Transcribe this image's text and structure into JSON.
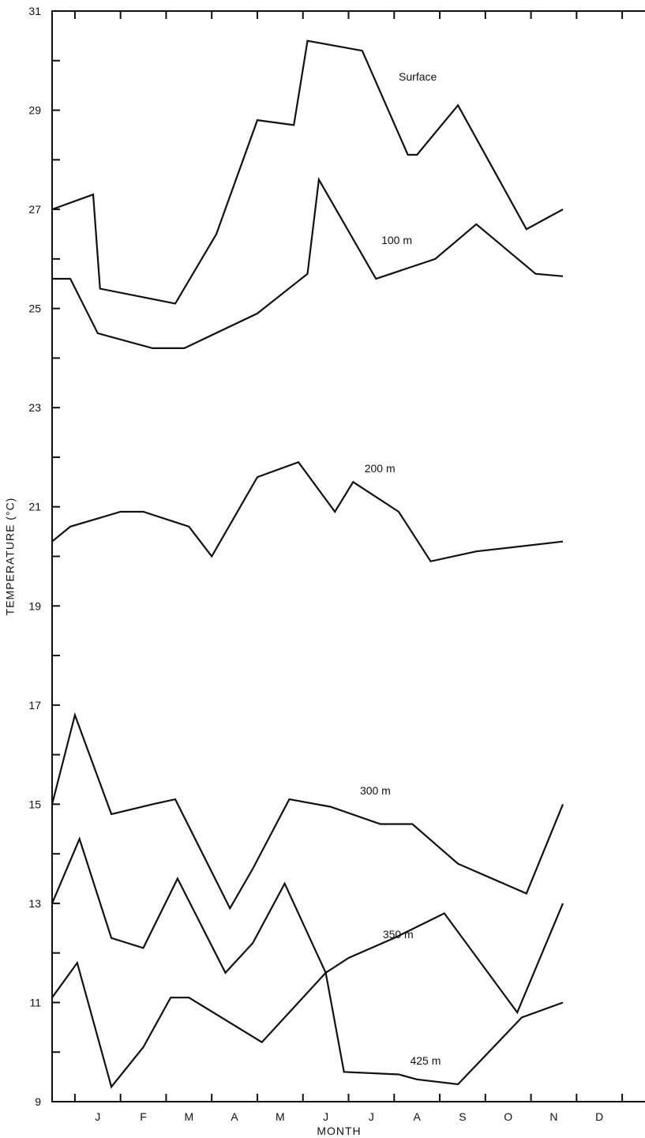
{
  "chart_data": {
    "type": "line",
    "title": "",
    "xlabel": "MONTH",
    "ylabel": "TEMPERATURE (°C)",
    "ylim": [
      9,
      31
    ],
    "xlim": [
      0,
      13
    ],
    "y_ticks_labeled": [
      9,
      11,
      13,
      15,
      17,
      19,
      21,
      23,
      25,
      27,
      29,
      31
    ],
    "y_ticks_minor": [
      10,
      12,
      14,
      16,
      18,
      20,
      22,
      24,
      26,
      28,
      30
    ],
    "x_ticks": [
      0.5,
      1.5,
      2.5,
      3.5,
      4.5,
      5.5,
      6.5,
      7.5,
      8.5,
      9.5,
      10.5,
      11.5,
      12.5
    ],
    "x_tick_labels": [
      {
        "x": 1,
        "label": "J"
      },
      {
        "x": 2,
        "label": "F"
      },
      {
        "x": 3,
        "label": "M"
      },
      {
        "x": 4,
        "label": "A"
      },
      {
        "x": 5,
        "label": "M"
      },
      {
        "x": 6,
        "label": "J"
      },
      {
        "x": 7,
        "label": "J"
      },
      {
        "x": 8,
        "label": "A"
      },
      {
        "x": 9,
        "label": "S"
      },
      {
        "x": 10,
        "label": "O"
      },
      {
        "x": 11,
        "label": "N"
      },
      {
        "x": 12,
        "label": "D"
      }
    ],
    "grid": false,
    "series": [
      {
        "name": "Surface",
        "label_at": {
          "x": 7.6,
          "y": 29.6
        },
        "points": [
          [
            0,
            27.0
          ],
          [
            0.9,
            27.3
          ],
          [
            1.05,
            25.4
          ],
          [
            2.7,
            25.1
          ],
          [
            3.6,
            26.5
          ],
          [
            4.5,
            28.8
          ],
          [
            5.3,
            28.7
          ],
          [
            5.6,
            30.4
          ],
          [
            6.8,
            30.2
          ],
          [
            7.8,
            28.1
          ],
          [
            8.0,
            28.1
          ],
          [
            8.9,
            29.1
          ],
          [
            10.4,
            26.6
          ],
          [
            11.2,
            27.0
          ]
        ]
      },
      {
        "name": "100 m",
        "label_at": {
          "x": 7.22,
          "y": 26.3
        },
        "points": [
          [
            0,
            25.6
          ],
          [
            0.4,
            25.6
          ],
          [
            1.0,
            24.5
          ],
          [
            2.2,
            24.2
          ],
          [
            2.9,
            24.2
          ],
          [
            4.5,
            24.9
          ],
          [
            5.6,
            25.7
          ],
          [
            5.85,
            27.6
          ],
          [
            7.1,
            25.6
          ],
          [
            8.4,
            26.0
          ],
          [
            9.3,
            26.7
          ],
          [
            10.6,
            25.7
          ],
          [
            11.2,
            25.65
          ]
        ]
      },
      {
        "name": "200 m",
        "label_at": {
          "x": 6.85,
          "y": 21.7
        },
        "points": [
          [
            0,
            20.3
          ],
          [
            0.4,
            20.6
          ],
          [
            1.5,
            20.9
          ],
          [
            2.0,
            20.9
          ],
          [
            3.0,
            20.6
          ],
          [
            3.5,
            20.0
          ],
          [
            4.5,
            21.6
          ],
          [
            5.4,
            21.9
          ],
          [
            6.2,
            20.9
          ],
          [
            6.6,
            21.5
          ],
          [
            7.6,
            20.9
          ],
          [
            8.3,
            19.9
          ],
          [
            9.3,
            20.1
          ],
          [
            11.2,
            20.3
          ]
        ]
      },
      {
        "name": "300 m",
        "label_at": {
          "x": 6.75,
          "y": 15.2
        },
        "points": [
          [
            0,
            15.0
          ],
          [
            0.5,
            16.8
          ],
          [
            1.3,
            14.8
          ],
          [
            2.2,
            15.0
          ],
          [
            2.7,
            15.1
          ],
          [
            3.9,
            12.9
          ],
          [
            4.4,
            13.7
          ],
          [
            5.2,
            15.1
          ],
          [
            6.1,
            14.95
          ],
          [
            7.2,
            14.6
          ],
          [
            7.9,
            14.6
          ],
          [
            8.9,
            13.8
          ],
          [
            10.4,
            13.2
          ],
          [
            11.2,
            15.0
          ]
        ]
      },
      {
        "name": "350 m",
        "label_at": {
          "x": 7.25,
          "y": 12.3
        },
        "points": [
          [
            0,
            13.0
          ],
          [
            0.6,
            14.3
          ],
          [
            1.3,
            12.3
          ],
          [
            2.0,
            12.1
          ],
          [
            2.75,
            13.5
          ],
          [
            3.8,
            11.6
          ],
          [
            4.4,
            12.2
          ],
          [
            5.1,
            13.4
          ],
          [
            6.0,
            11.6
          ],
          [
            6.5,
            11.9
          ],
          [
            7.5,
            12.3
          ],
          [
            8.6,
            12.8
          ],
          [
            10.2,
            10.8
          ],
          [
            11.2,
            13.0
          ]
        ]
      },
      {
        "name": "425 m",
        "label_at": {
          "x": 7.85,
          "y": 9.75
        },
        "points": [
          [
            0,
            11.1
          ],
          [
            0.55,
            11.8
          ],
          [
            1.3,
            9.3
          ],
          [
            2.0,
            10.1
          ],
          [
            2.6,
            11.1
          ],
          [
            3.0,
            11.1
          ],
          [
            4.6,
            10.2
          ],
          [
            5.2,
            10.8
          ],
          [
            6.0,
            11.6
          ],
          [
            6.4,
            9.6
          ],
          [
            7.6,
            9.55
          ],
          [
            8.0,
            9.45
          ],
          [
            8.9,
            9.35
          ],
          [
            10.3,
            10.7
          ],
          [
            11.2,
            11.0
          ]
        ]
      }
    ]
  }
}
